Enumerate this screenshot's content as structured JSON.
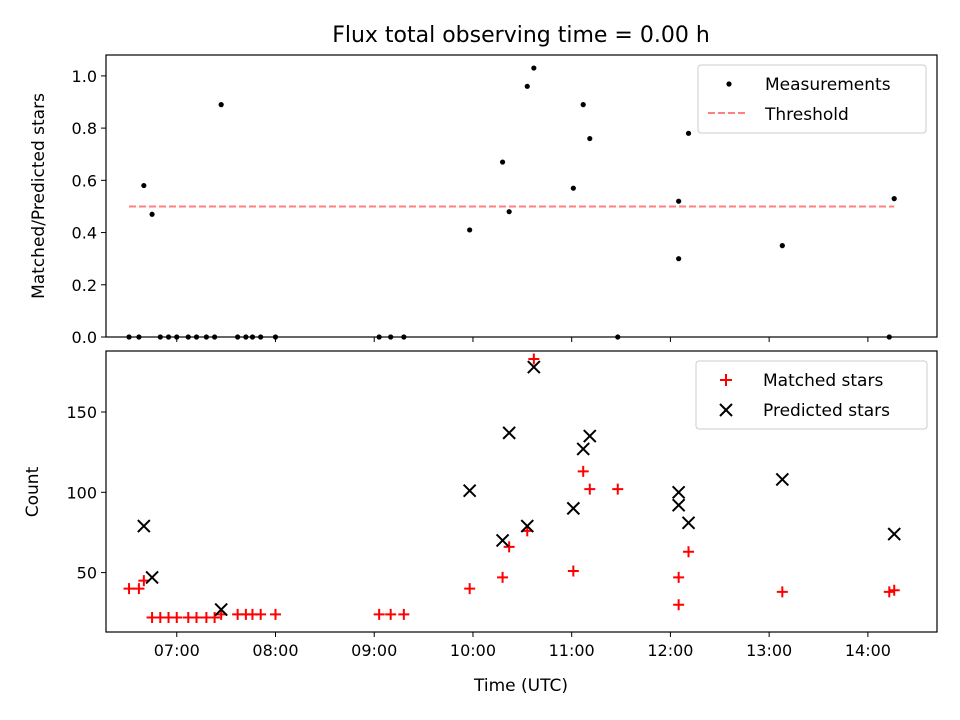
{
  "title": "Flux total observing time = 0.00 h",
  "chart_data": [
    {
      "type": "scatter",
      "ylabel": "Matched/Predicted stars",
      "xlim": [
        "06:17",
        "14:42"
      ],
      "ylim": [
        0,
        1.08
      ],
      "yticks": [
        0.0,
        0.2,
        0.4,
        0.6,
        0.8,
        1.0
      ],
      "ytick_labels": [
        "0.0",
        "0.2",
        "0.4",
        "0.6",
        "0.8",
        "1.0"
      ],
      "legend_placement": "upper right",
      "grid": false,
      "series": [
        {
          "name": "Measurements",
          "marker": "dot",
          "color": "#000000",
          "points": [
            [
              "06:31",
              0
            ],
            [
              "06:37",
              0
            ],
            [
              "06:40",
              0.58
            ],
            [
              "06:45",
              0.47
            ],
            [
              "06:50",
              0
            ],
            [
              "06:55",
              0
            ],
            [
              "07:00",
              0
            ],
            [
              "07:07",
              0
            ],
            [
              "07:12",
              0
            ],
            [
              "07:18",
              0
            ],
            [
              "07:23",
              0
            ],
            [
              "07:27",
              0.89
            ],
            [
              "07:37",
              0
            ],
            [
              "07:42",
              0
            ],
            [
              "07:46",
              0
            ],
            [
              "07:51",
              0
            ],
            [
              "08:00",
              0
            ],
            [
              "09:03",
              0
            ],
            [
              "09:10",
              0
            ],
            [
              "09:18",
              0
            ],
            [
              "09:58",
              0.41
            ],
            [
              "10:18",
              0.67
            ],
            [
              "10:22",
              0.48
            ],
            [
              "10:33",
              0.96
            ],
            [
              "10:37",
              1.03
            ],
            [
              "11:01",
              0.57
            ],
            [
              "11:07",
              0.89
            ],
            [
              "11:11",
              0.76
            ],
            [
              "11:28",
              0
            ],
            [
              "12:05",
              0.52
            ],
            [
              "12:05",
              0.3
            ],
            [
              "12:11",
              0.78
            ],
            [
              "13:08",
              0.35
            ],
            [
              "14:13",
              0
            ],
            [
              "14:16",
              0.53
            ]
          ]
        },
        {
          "name": "Threshold",
          "line_style": "dashed",
          "color": "#ff8080",
          "points": [
            [
              "06:31",
              0.5
            ],
            [
              "14:16",
              0.5
            ]
          ]
        }
      ]
    },
    {
      "type": "scatter",
      "xlabel": "Time (UTC)",
      "ylabel": "Count",
      "xlim": [
        "06:17",
        "14:42"
      ],
      "ylim": [
        13,
        188
      ],
      "yticks": [
        50,
        100,
        150
      ],
      "ytick_labels": [
        "50",
        "100",
        "150"
      ],
      "xticks": [
        "07:00",
        "08:00",
        "09:00",
        "10:00",
        "11:00",
        "12:00",
        "13:00",
        "14:00"
      ],
      "xtick_labels": [
        "07:00",
        "08:00",
        "09:00",
        "10:00",
        "11:00",
        "12:00",
        "13:00",
        "14:00"
      ],
      "legend_placement": "upper right",
      "grid": false,
      "series": [
        {
          "name": "Matched stars",
          "marker": "plus",
          "color": "#ff0000",
          "points": [
            [
              "06:31",
              40
            ],
            [
              "06:37",
              40
            ],
            [
              "06:40",
              45
            ],
            [
              "06:45",
              22
            ],
            [
              "06:50",
              22
            ],
            [
              "06:55",
              22
            ],
            [
              "07:00",
              22
            ],
            [
              "07:07",
              22
            ],
            [
              "07:12",
              22
            ],
            [
              "07:18",
              22
            ],
            [
              "07:23",
              22
            ],
            [
              "07:27",
              24
            ],
            [
              "07:37",
              24
            ],
            [
              "07:42",
              24
            ],
            [
              "07:46",
              24
            ],
            [
              "07:51",
              24
            ],
            [
              "08:00",
              24
            ],
            [
              "09:03",
              24
            ],
            [
              "09:10",
              24
            ],
            [
              "09:18",
              24
            ],
            [
              "09:58",
              40
            ],
            [
              "10:18",
              47
            ],
            [
              "10:22",
              66
            ],
            [
              "10:33",
              76
            ],
            [
              "10:37",
              183
            ],
            [
              "11:01",
              51
            ],
            [
              "11:07",
              113
            ],
            [
              "11:11",
              102
            ],
            [
              "11:28",
              102
            ],
            [
              "12:05",
              47
            ],
            [
              "12:05",
              30
            ],
            [
              "12:11",
              63
            ],
            [
              "13:08",
              38
            ],
            [
              "14:13",
              38
            ],
            [
              "14:16",
              39
            ]
          ]
        },
        {
          "name": "Predicted stars",
          "marker": "x",
          "color": "#000000",
          "points": [
            [
              "06:40",
              79
            ],
            [
              "06:45",
              47
            ],
            [
              "07:27",
              27
            ],
            [
              "09:58",
              101
            ],
            [
              "10:18",
              70
            ],
            [
              "10:22",
              137
            ],
            [
              "10:33",
              79
            ],
            [
              "10:37",
              178
            ],
            [
              "11:01",
              90
            ],
            [
              "11:07",
              127
            ],
            [
              "11:11",
              135
            ],
            [
              "12:05",
              100
            ],
            [
              "12:05",
              92
            ],
            [
              "12:11",
              81
            ],
            [
              "13:08",
              108
            ],
            [
              "14:16",
              74
            ]
          ]
        }
      ]
    }
  ]
}
